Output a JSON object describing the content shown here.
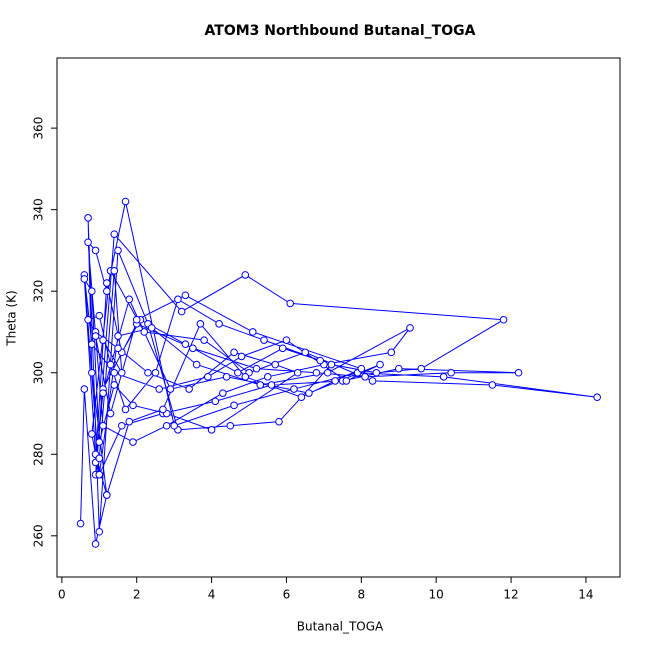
{
  "chart_data": {
    "type": "line",
    "title": "ATOM3 Northbound Butanal_TOGA",
    "xlabel": "Butanal_TOGA",
    "ylabel": "Theta (K)",
    "xlim": [
      -0.13,
      14.91
    ],
    "ylim": [
      249.9,
      377.2
    ],
    "xticks": [
      0,
      2,
      4,
      6,
      8,
      10,
      12,
      14
    ],
    "yticks": [
      260,
      280,
      300,
      320,
      340,
      360
    ],
    "series": [
      {
        "color": "#0000ff",
        "x": [
          0.5,
          0.6,
          0.9,
          1.2,
          0.8,
          0.7,
          1.0,
          1.5,
          2.3,
          3.1,
          4.5,
          5.8,
          7.2,
          8.4,
          9.6,
          11.8,
          6.1,
          4.9,
          3.2,
          1.4,
          0.9,
          1.1,
          2.0,
          3.5,
          5.2,
          6.8,
          8.1,
          10.4,
          12.2,
          9.0,
          7.5,
          5.6,
          4.1,
          2.7,
          1.6,
          1.0,
          0.8,
          1.3,
          2.2,
          3.8,
          5.0,
          6.5,
          8.3,
          11.5,
          14.3,
          10.2,
          7.9,
          6.2,
          4.6,
          3.0,
          1.7,
          1.2,
          0.9,
          0.7,
          1.1,
          1.9,
          2.8,
          4.3,
          5.5,
          7.0,
          8.8,
          9.3,
          7.1,
          5.3,
          3.6,
          2.4,
          1.5,
          1.0,
          0.6,
          0.8,
          1.4,
          2.6,
          3.9,
          4.8,
          6.0,
          7.6,
          8.5,
          6.6,
          4.4,
          2.9,
          1.8,
          1.1,
          0.9,
          1.2,
          1.6,
          2.1,
          3.3,
          4.7,
          5.9,
          6.9,
          5.4,
          4.2,
          3.1,
          2.5,
          1.7,
          1.3,
          1.0,
          0.7,
          0.9,
          1.5,
          2.3,
          3.4,
          4.6,
          5.7,
          6.3,
          4.0,
          2.8,
          1.9,
          1.4,
          1.0,
          0.8,
          0.6,
          0.9,
          1.2,
          1.8,
          2.7,
          3.7,
          4.9,
          6.4,
          7.3,
          8.0,
          5.1,
          3.3,
          2.0,
          1.3,
          0.9,
          1.1,
          1.6,
          1.4,
          1.0
        ],
        "values": [
          263,
          296,
          258,
          270,
          300,
          338,
          261,
          330,
          312,
          286,
          287,
          288,
          302,
          300,
          301,
          313,
          317,
          324,
          315,
          334,
          275,
          296,
          312,
          306,
          301,
          300,
          299,
          300,
          300,
          301,
          298,
          297,
          293,
          290,
          287,
          275,
          285,
          325,
          310,
          308,
          300,
          305,
          298,
          297,
          294,
          299,
          300,
          296,
          292,
          287,
          342,
          320,
          330,
          332,
          287,
          283,
          287,
          295,
          299,
          302,
          305,
          311,
          300,
          297,
          302,
          311,
          309,
          275,
          324,
          307,
          300,
          296,
          299,
          304,
          308,
          298,
          302,
          295,
          299,
          296,
          318,
          295,
          278,
          322,
          305,
          313,
          307,
          300,
          306,
          303,
          308,
          312,
          318,
          300,
          291,
          302,
          314,
          313,
          310,
          306,
          300,
          296,
          305,
          302,
          300,
          286,
          290,
          292,
          297,
          283,
          320,
          323,
          280,
          270,
          288,
          291,
          312,
          299,
          294,
          298,
          301,
          310,
          319,
          313,
          290,
          309,
          308,
          300,
          325,
          279
        ]
      }
    ]
  }
}
